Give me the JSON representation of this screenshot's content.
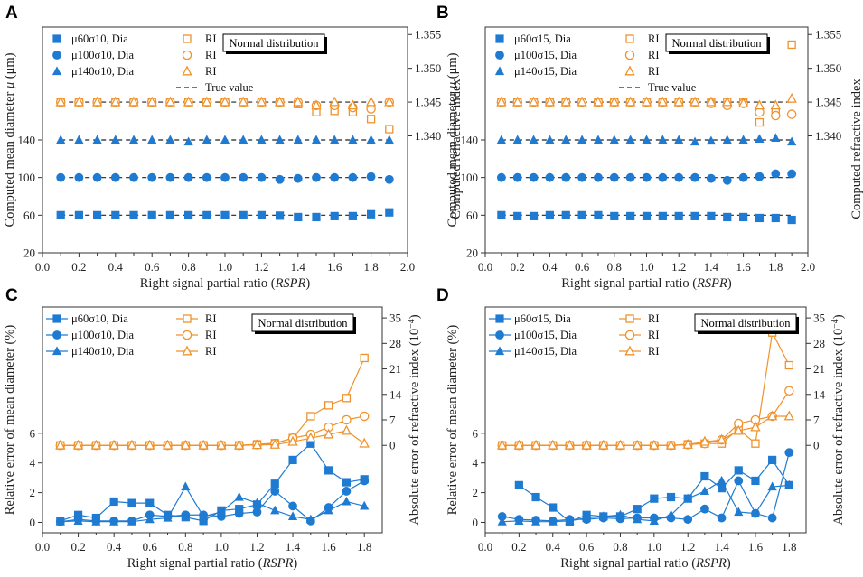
{
  "colors": {
    "blue": "#1f7bd1",
    "orange": "#f0922b",
    "dash": "#222222",
    "axis": "#333333"
  },
  "chart_data": [
    {
      "panel": "A",
      "type": "scatter",
      "xlabel": "Right signal partial ratio (",
      "xlabel_it": "RSPR",
      "xlabel_end": ")",
      "ylabel_pre": "Computed mean diameter ",
      "ylabel_mu": "μ",
      "ylabel_post": " (μm)",
      "ylabel_right": "Computed refractive index",
      "xlim": [
        0.0,
        2.0
      ],
      "xticks": [
        "0.0",
        "0.2",
        "0.4",
        "0.6",
        "0.8",
        "1.0",
        "1.2",
        "1.4",
        "1.6",
        "1.8",
        "2.0"
      ],
      "ylim": [
        20,
        260
      ],
      "yticks": [
        "20",
        "60",
        "100",
        "140"
      ],
      "ytick_vals": [
        20,
        60,
        100,
        140
      ],
      "y2lim": [
        1.3227,
        1.3561
      ],
      "y2ticks": [
        "1.340",
        "1.345",
        "1.350",
        "1.355"
      ],
      "y2tick_vals": [
        1.34,
        1.345,
        1.35,
        1.355
      ],
      "box": "Normal distribution",
      "legend": {
        "diameter": [
          "μ60σ10, Dia",
          "μ100σ10, Dia",
          "μ140σ10, Dia"
        ],
        "ri": [
          "RI",
          "RI",
          "RI"
        ],
        "true": "True value"
      },
      "x": [
        0.1,
        0.2,
        0.3,
        0.4,
        0.5,
        0.6,
        0.7,
        0.8,
        0.9,
        1.0,
        1.1,
        1.2,
        1.3,
        1.4,
        1.5,
        1.6,
        1.7,
        1.8,
        1.9
      ],
      "true_values": {
        "diameter": [
          60,
          100,
          140
        ],
        "ri": 1.345
      },
      "series": [
        {
          "name": "μ60σ10, Dia",
          "axis": "left",
          "marker": "square",
          "values": [
            60,
            60,
            60,
            60,
            60,
            60,
            60,
            60,
            60,
            60,
            60,
            60,
            59.5,
            58,
            58,
            59,
            59,
            61,
            63
          ]
        },
        {
          "name": "μ100σ10, Dia",
          "axis": "left",
          "marker": "circle",
          "values": [
            100,
            100,
            100,
            100,
            100,
            100,
            100,
            100,
            100,
            100,
            100,
            100,
            98,
            99,
            100,
            100,
            100,
            101,
            98
          ]
        },
        {
          "name": "μ140σ10, Dia",
          "axis": "left",
          "marker": "triangle",
          "values": [
            140,
            140,
            140,
            140,
            140,
            140,
            140,
            138,
            140,
            140,
            140,
            140,
            140,
            140,
            140,
            140,
            140,
            140,
            140
          ]
        },
        {
          "name": "RI 60",
          "axis": "right",
          "marker": "osquare",
          "values": [
            1.345,
            1.345,
            1.345,
            1.345,
            1.345,
            1.345,
            1.345,
            1.345,
            1.345,
            1.345,
            1.345,
            1.345,
            1.345,
            1.3447,
            1.3435,
            1.3437,
            1.3435,
            1.3425,
            1.341
          ]
        },
        {
          "name": "RI 100",
          "axis": "right",
          "marker": "ocircle",
          "values": [
            1.345,
            1.345,
            1.345,
            1.345,
            1.345,
            1.345,
            1.345,
            1.345,
            1.345,
            1.345,
            1.345,
            1.345,
            1.345,
            1.345,
            1.3445,
            1.3445,
            1.3442,
            1.344,
            1.345
          ]
        },
        {
          "name": "RI 140",
          "axis": "right",
          "marker": "otriangle",
          "values": [
            1.345,
            1.345,
            1.345,
            1.345,
            1.345,
            1.345,
            1.345,
            1.345,
            1.345,
            1.345,
            1.345,
            1.345,
            1.345,
            1.345,
            1.3445,
            1.345,
            1.3445,
            1.345,
            1.345
          ]
        }
      ]
    },
    {
      "panel": "B",
      "type": "scatter",
      "xlabel": "Right signal partial ratio (",
      "xlabel_it": "RSPR",
      "xlabel_end": ")",
      "ylabel_pre": "Computed mean diameter ",
      "ylabel_mu": "μ",
      "ylabel_post": " (μm)",
      "ylabel_right": "Computed refractive index",
      "xlim": [
        0.0,
        2.0
      ],
      "xticks": [
        "0.0",
        "0.2",
        "0.4",
        "0.6",
        "0.8",
        "1.0",
        "1.2",
        "1.4",
        "1.6",
        "1.8",
        "2.0"
      ],
      "ylim": [
        20,
        260
      ],
      "yticks": [
        "20",
        "60",
        "100",
        "140"
      ],
      "ytick_vals": [
        20,
        60,
        100,
        140
      ],
      "y2lim": [
        1.3227,
        1.3561
      ],
      "y2ticks": [
        "1.340",
        "1.345",
        "1.350",
        "1.355"
      ],
      "y2tick_vals": [
        1.34,
        1.345,
        1.35,
        1.355
      ],
      "box": "Normal distribution",
      "legend": {
        "diameter": [
          "μ60σ15, Dia",
          "μ100σ15, Dia",
          "μ140σ15, Dia"
        ],
        "ri": [
          "RI",
          "RI",
          "RI"
        ],
        "true": "True value"
      },
      "x": [
        0.1,
        0.2,
        0.3,
        0.4,
        0.5,
        0.6,
        0.7,
        0.8,
        0.9,
        1.0,
        1.1,
        1.2,
        1.3,
        1.4,
        1.5,
        1.6,
        1.7,
        1.8,
        1.9
      ],
      "true_values": {
        "diameter": [
          60,
          100,
          140
        ],
        "ri": 1.345
      },
      "series": [
        {
          "name": "μ60σ15, Dia",
          "axis": "left",
          "marker": "square",
          "values": [
            60,
            59,
            59,
            60,
            60,
            60,
            60,
            59,
            59,
            59,
            59,
            59,
            59,
            59,
            58,
            58,
            57,
            57,
            55
          ]
        },
        {
          "name": "μ100σ15, Dia",
          "axis": "left",
          "marker": "circle",
          "values": [
            100,
            100,
            100,
            100,
            100,
            100,
            100,
            100,
            100,
            100,
            100,
            100,
            100,
            99,
            97,
            100,
            101,
            104,
            104
          ]
        },
        {
          "name": "μ140σ15, Dia",
          "axis": "left",
          "marker": "triangle",
          "values": [
            140,
            140,
            140,
            140,
            140,
            140,
            140,
            140,
            140,
            140,
            140,
            140,
            138,
            139,
            140,
            140,
            141,
            142,
            138
          ]
        },
        {
          "name": "RI 60",
          "axis": "right",
          "marker": "osquare",
          "values": [
            1.345,
            1.345,
            1.345,
            1.345,
            1.345,
            1.345,
            1.345,
            1.345,
            1.345,
            1.345,
            1.345,
            1.345,
            1.345,
            1.345,
            1.345,
            1.345,
            1.342,
            1.3435,
            1.3535
          ]
        },
        {
          "name": "RI 100",
          "axis": "right",
          "marker": "ocircle",
          "values": [
            1.345,
            1.345,
            1.345,
            1.345,
            1.345,
            1.345,
            1.345,
            1.345,
            1.345,
            1.345,
            1.345,
            1.345,
            1.345,
            1.3448,
            1.3445,
            1.3448,
            1.3435,
            1.343,
            1.3432
          ]
        },
        {
          "name": "RI 140",
          "axis": "right",
          "marker": "otriangle",
          "values": [
            1.345,
            1.345,
            1.345,
            1.345,
            1.345,
            1.345,
            1.345,
            1.345,
            1.345,
            1.345,
            1.345,
            1.345,
            1.345,
            1.345,
            1.345,
            1.3448,
            1.3445,
            1.3445,
            1.3455
          ]
        }
      ]
    },
    {
      "panel": "C",
      "type": "line",
      "xlabel": "Right signal partial ratio (",
      "xlabel_it": "RSPR",
      "xlabel_end": ")",
      "ylabel": "Relative error of mean diameter (%)",
      "ylabel_right_pre": "Absolute error of refractive index (10",
      "ylabel_right_sup": "−4",
      "ylabel_right_end": ")",
      "xlim": [
        0.0,
        1.9
      ],
      "xticks": [
        "0.0",
        "0.2",
        "0.4",
        "0.6",
        "0.8",
        "1.0",
        "1.2",
        "1.4",
        "1.6",
        "1.8"
      ],
      "ylim": [
        -0.7,
        14.5
      ],
      "yticks": [
        "0",
        "2",
        "4",
        "6"
      ],
      "ytick_vals": [
        0,
        2,
        4,
        6
      ],
      "y2lim": [
        -24,
        38
      ],
      "y2ticks": [
        "0",
        "7",
        "14",
        "21",
        "28",
        "35"
      ],
      "y2tick_vals": [
        0,
        7,
        14,
        21,
        28,
        35
      ],
      "box": "Normal distribution",
      "legend": {
        "diameter": [
          "μ60σ10, Dia",
          "μ100σ10, Dia",
          "μ140σ10, Dia"
        ],
        "ri": [
          "RI",
          "RI",
          "RI"
        ]
      },
      "x": [
        0.1,
        0.2,
        0.3,
        0.4,
        0.5,
        0.6,
        0.7,
        0.8,
        0.9,
        1.0,
        1.1,
        1.2,
        1.3,
        1.4,
        1.5,
        1.6,
        1.7,
        1.8
      ],
      "series": [
        {
          "name": "μ60σ10, Dia",
          "axis": "left",
          "marker": "square",
          "values": [
            0.1,
            0.5,
            0.3,
            1.4,
            1.3,
            1.3,
            0.5,
            0.35,
            0.1,
            0.8,
            0.9,
            1.2,
            2.6,
            4.2,
            5.3,
            3.5,
            2.7,
            2.9
          ]
        },
        {
          "name": "μ100σ10, Dia",
          "axis": "left",
          "marker": "circle",
          "values": [
            0.05,
            0.2,
            0.1,
            0.1,
            0.1,
            0.5,
            0.4,
            0.5,
            0.5,
            0.4,
            0.6,
            0.7,
            2.1,
            1.1,
            0.1,
            1.0,
            2.1,
            2.8
          ]
        },
        {
          "name": "μ140σ10, Dia",
          "axis": "left",
          "marker": "triangle",
          "values": [
            0.05,
            0.1,
            0.05,
            0.05,
            0.05,
            0.2,
            0.3,
            2.4,
            0.4,
            0.7,
            1.7,
            1.3,
            0.8,
            0.4,
            0.2,
            0.8,
            1.4,
            1.1
          ]
        },
        {
          "name": "RI",
          "axis": "right",
          "marker": "osquare",
          "values": [
            0,
            0,
            0,
            0,
            0,
            0,
            0,
            0,
            0,
            0,
            0,
            0.3,
            0.6,
            2,
            8,
            11,
            13,
            24
          ]
        },
        {
          "name": "RI",
          "axis": "right",
          "marker": "ocircle",
          "values": [
            0,
            0,
            0,
            0,
            0,
            0,
            0,
            0,
            0,
            0,
            0,
            0.2,
            0.5,
            2,
            3,
            5,
            7,
            8
          ]
        },
        {
          "name": "RI",
          "axis": "right",
          "marker": "otriangle",
          "values": [
            0,
            0,
            0,
            0,
            0,
            0,
            0,
            0,
            0,
            0,
            0,
            0.1,
            0.2,
            1,
            2,
            3,
            4,
            0.5
          ]
        }
      ]
    },
    {
      "panel": "D",
      "type": "line",
      "xlabel": "Right signal partial ratio (",
      "xlabel_it": "RSPR",
      "xlabel_end": ")",
      "ylabel": "Relative error of mean diameter (%)",
      "ylabel_right_pre": "Absolute error of refractive index (10",
      "ylabel_right_sup": "−4",
      "ylabel_right_end": ")",
      "xlim": [
        0.0,
        1.9
      ],
      "xticks": [
        "0.0",
        "0.2",
        "0.4",
        "0.6",
        "0.8",
        "1.0",
        "1.2",
        "1.4",
        "1.6",
        "1.8"
      ],
      "ylim": [
        -0.7,
        14.5
      ],
      "yticks": [
        "0",
        "2",
        "4",
        "6"
      ],
      "ytick_vals": [
        0,
        2,
        4,
        6
      ],
      "y2lim": [
        -24,
        38
      ],
      "y2ticks": [
        "0",
        "7",
        "14",
        "21",
        "28",
        "35"
      ],
      "y2tick_vals": [
        0,
        7,
        14,
        21,
        28,
        35
      ],
      "box": "Normal distribution",
      "legend": {
        "diameter": [
          "μ60σ15, Dia",
          "μ100σ15, Dia",
          "μ140σ15, Dia"
        ],
        "ri": [
          "RI",
          "RI",
          "RI"
        ]
      },
      "x": [
        0.1,
        0.2,
        0.3,
        0.4,
        0.5,
        0.6,
        0.7,
        0.8,
        0.9,
        1.0,
        1.1,
        1.2,
        1.3,
        1.4,
        1.5,
        1.6,
        1.7,
        1.8
      ],
      "series": [
        {
          "name": "μ60σ15, Dia",
          "axis": "left",
          "marker": "square",
          "start": 1,
          "values": [
            null,
            2.5,
            1.7,
            1.0,
            0.05,
            0.5,
            0.4,
            0.4,
            0.9,
            1.6,
            1.7,
            1.6,
            3.1,
            2.3,
            3.5,
            2.8,
            4.2,
            2.5
          ]
        },
        {
          "name": "μ100σ15, Dia",
          "axis": "left",
          "marker": "circle",
          "values": [
            0.4,
            0.2,
            0.15,
            0.1,
            0.2,
            0.2,
            0.3,
            0.25,
            0.3,
            0.3,
            0.3,
            0.2,
            0.9,
            0.3,
            2.8,
            0.6,
            0.3,
            4.7
          ]
        },
        {
          "name": "μ140σ15, Dia",
          "axis": "left",
          "marker": "triangle",
          "values": [
            0.05,
            0.1,
            0.05,
            0.05,
            0.1,
            0.3,
            0.4,
            0.5,
            0.2,
            0.1,
            0.5,
            1.6,
            2.1,
            2.8,
            0.7,
            0.6,
            2.4,
            2.5
          ]
        },
        {
          "name": "RI",
          "axis": "right",
          "marker": "osquare",
          "values": [
            0,
            0,
            0,
            0,
            0,
            0,
            0,
            0,
            0,
            0,
            0,
            0.3,
            0.5,
            0.5,
            4.5,
            0.5,
            31,
            22
          ]
        },
        {
          "name": "RI",
          "axis": "right",
          "marker": "ocircle",
          "values": [
            0,
            0,
            0,
            0,
            0,
            0,
            0,
            0,
            0,
            0,
            0,
            0.2,
            0.5,
            1.5,
            6,
            7,
            8,
            15
          ]
        },
        {
          "name": "RI",
          "axis": "right",
          "marker": "otriangle",
          "values": [
            0,
            0,
            0,
            0,
            0,
            0,
            0,
            0,
            0,
            0,
            0,
            0.2,
            1,
            1.5,
            4,
            5,
            8,
            8
          ]
        }
      ]
    }
  ]
}
